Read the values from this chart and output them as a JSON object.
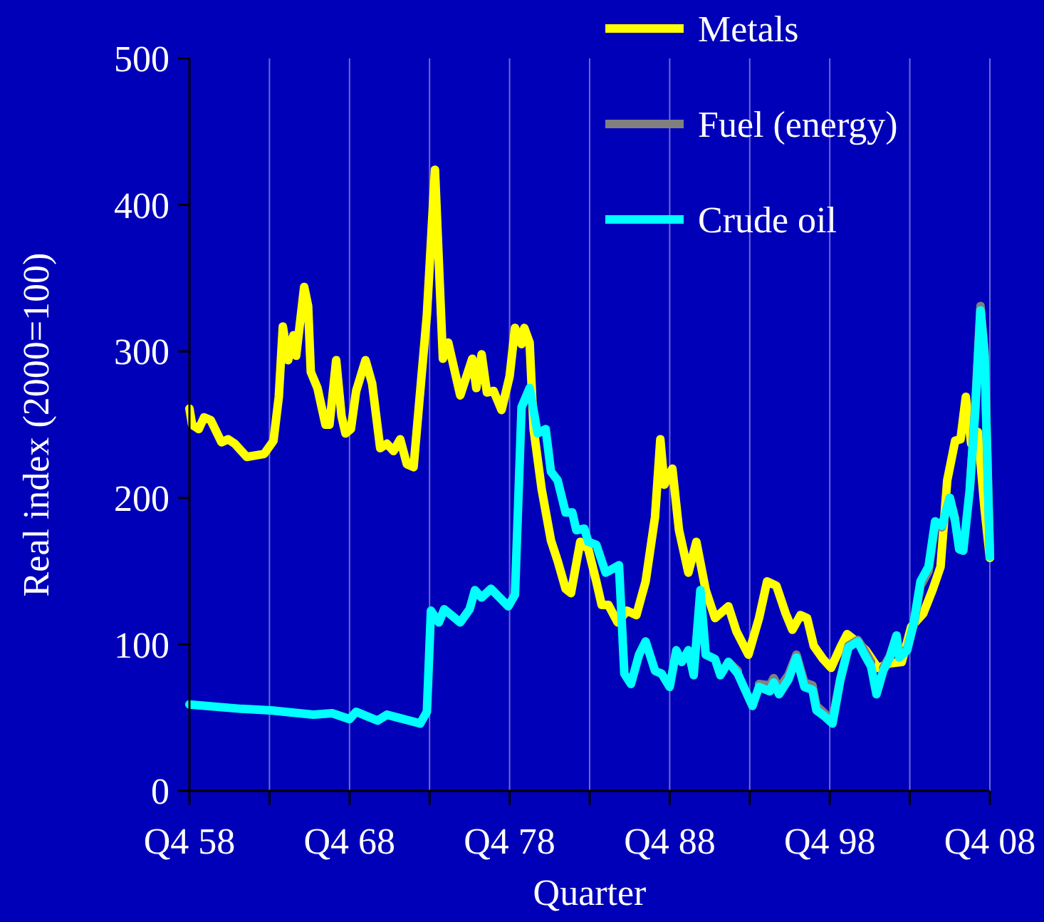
{
  "chart_data": {
    "type": "line",
    "xlabel": "Quarter",
    "ylabel": "Real index (2000=100)",
    "xlim": [
      "1958-10",
      "2008-10"
    ],
    "xticks": [
      {
        "value": "1958-10",
        "label": "Q4 58"
      },
      {
        "value": "1963-10",
        "label": null
      },
      {
        "value": "1968-10",
        "label": "Q4 68"
      },
      {
        "value": "1973-10",
        "label": null
      },
      {
        "value": "1978-10",
        "label": "Q4 78"
      },
      {
        "value": "1983-10",
        "label": null
      },
      {
        "value": "1988-10",
        "label": "Q4 88"
      },
      {
        "value": "1993-10",
        "label": null
      },
      {
        "value": "1998-10",
        "label": "Q4 98"
      },
      {
        "value": "2003-10",
        "label": null
      },
      {
        "value": "2008-10",
        "label": "Q4 08"
      }
    ],
    "ylim": [
      0,
      500
    ],
    "yticks": [
      0,
      100,
      200,
      300,
      400,
      500
    ],
    "grid": "x",
    "legend": "top right",
    "line_style": "solid",
    "marker": "none",
    "series": [
      {
        "name": "Metals",
        "color": "#ffff00",
        "x": [
          "1958-10",
          "1958-12",
          "1959-05",
          "1959-09",
          "1960-02",
          "1960-10",
          "1961-03",
          "1961-08",
          "1962-05",
          "1963-06",
          "1964-01",
          "1964-05",
          "1964-08",
          "1964-12",
          "1965-04",
          "1965-06",
          "1965-12",
          "1966-03",
          "1966-05",
          "1966-10",
          "1967-04",
          "1967-07",
          "1967-12",
          "1968-04",
          "1968-07",
          "1968-11",
          "1969-03",
          "1969-10",
          "1970-03",
          "1970-09",
          "1971-02",
          "1971-07",
          "1971-12",
          "1972-05",
          "1972-10",
          "1973-08",
          "1974-02",
          "1974-08",
          "1974-12",
          "1975-09",
          "1976-06",
          "1976-09",
          "1977-01",
          "1977-05",
          "1977-10",
          "1978-04",
          "1978-10",
          "1979-02",
          "1979-07",
          "1979-09",
          "1980-01",
          "1980-04",
          "1980-10",
          "1981-05",
          "1981-10",
          "1982-04",
          "1982-08",
          "1983-03",
          "1983-09",
          "1984-03",
          "1984-07",
          "1984-12",
          "1985-07",
          "1986-02",
          "1986-09",
          "1987-04",
          "1987-11",
          "1988-03",
          "1988-06",
          "1988-12",
          "1989-05",
          "1989-12",
          "1990-06",
          "1991-01",
          "1991-08",
          "1992-06",
          "1992-12",
          "1993-09",
          "1994-05",
          "1994-11",
          "1995-06",
          "1996-01",
          "1996-06",
          "1996-12",
          "1997-05",
          "1997-10",
          "1998-05",
          "1998-11",
          "1999-06",
          "1999-11",
          "2000-06",
          "2001-01",
          "2001-10",
          "2002-07",
          "2003-04",
          "2003-11",
          "2004-08",
          "2005-03",
          "2005-09",
          "2006-02",
          "2006-08",
          "2006-12",
          "2007-04",
          "2007-08",
          "2008-01",
          "2008-06",
          "2008-10"
        ],
        "values": [
          261,
          250,
          247,
          255,
          253,
          238,
          240,
          237,
          228,
          230,
          239,
          269,
          317,
          294,
          311,
          297,
          344,
          331,
          286,
          275,
          250,
          250,
          294,
          256,
          244,
          247,
          273,
          294,
          278,
          234,
          237,
          232,
          240,
          223,
          221,
          325,
          424,
          295,
          306,
          270,
          295,
          275,
          298,
          272,
          273,
          260,
          283,
          316,
          305,
          316,
          306,
          247,
          206,
          171,
          157,
          138,
          135,
          170,
          165,
          143,
          127,
          127,
          115,
          123,
          120,
          143,
          187,
          240,
          209,
          220,
          178,
          149,
          170,
          137,
          118,
          126,
          109,
          93,
          118,
          143,
          140,
          121,
          110,
          120,
          118,
          99,
          90,
          84,
          98,
          107,
          102,
          96,
          84,
          87,
          88,
          112,
          121,
          137,
          153,
          212,
          239,
          240,
          269,
          237,
          245,
          193,
          159
        ]
      },
      {
        "name": "Fuel (energy)",
        "color": "#808080",
        "x": [
          "1992-06",
          "1993-01",
          "1993-12",
          "1994-05",
          "1995-01",
          "1995-04",
          "1995-08",
          "1996-03",
          "1996-09",
          "1997-03",
          "1997-09",
          "1997-12",
          "1998-06",
          "1998-12",
          "1999-06",
          "1999-12",
          "2000-07",
          "2000-12",
          "2001-05",
          "2001-09",
          "2002-02",
          "2002-07",
          "2002-12",
          "2003-02",
          "2003-08",
          "2004-01",
          "2004-06",
          "2004-12",
          "2005-05",
          "2005-10",
          "2006-04",
          "2006-08",
          "2006-11",
          "2007-02",
          "2007-07",
          "2007-11",
          "2008-03",
          "2008-06",
          "2008-10"
        ],
        "values": [
          88,
          82,
          null,
          73,
          72,
          77,
          70,
          79,
          93,
          74,
          72,
          58,
          53,
          48,
          77,
          99,
          103,
          96,
          88,
          null,
          84,
          92,
          106,
          93,
          97,
          114,
          140,
          150,
          182,
          180,
          200,
          186,
          null,
          null,
          207,
          262,
          331,
          300,
          162
        ]
      },
      {
        "name": "Crude oil",
        "color": "#00ffff",
        "x": [
          "1958-10",
          "1962-01",
          "1963-11",
          "1966-07",
          "1967-09",
          "1968-10",
          "1969-03",
          "1970-07",
          "1971-02",
          "1973-03",
          "1973-08",
          "1973-11",
          "1974-05",
          "1974-09",
          "1975-09",
          "1976-04",
          "1976-08",
          "1977-01",
          "1977-08",
          "1978-09",
          "1979-02",
          "1979-07",
          "1980-01",
          "1980-07",
          "1981-01",
          "1981-05",
          "1981-10",
          "1982-04",
          "1982-09",
          "1982-12",
          "1983-06",
          "1983-09",
          "1984-03",
          "1984-10",
          "1985-08",
          "1985-12",
          "1986-05",
          "1986-11",
          "1987-04",
          "1987-11",
          "1988-04",
          "1988-10",
          "1989-03",
          "1989-07",
          "1989-12",
          "1990-04",
          "1990-09",
          "1991-01",
          "1991-08",
          "1991-12",
          "1992-06",
          "1993-01",
          "1993-12",
          "1994-05",
          "1995-01",
          "1995-04",
          "1995-08",
          "1996-03",
          "1996-09",
          "1997-03",
          "1997-09",
          "1997-12",
          "1998-06",
          "1998-12",
          "1999-06",
          "1999-12",
          "2000-07",
          "2000-12",
          "2001-05",
          "2001-09",
          "2002-02",
          "2002-07",
          "2002-12",
          "2003-02",
          "2003-08",
          "2004-01",
          "2004-06",
          "2004-12",
          "2005-05",
          "2005-10",
          "2006-04",
          "2006-08",
          "2006-11",
          "2007-02",
          "2007-07",
          "2007-11",
          "2008-03",
          "2008-06",
          "2008-10"
        ],
        "values": [
          59,
          56,
          55,
          52,
          53,
          49,
          54,
          48,
          52,
          46,
          54,
          123,
          115,
          124,
          115,
          124,
          137,
          132,
          138,
          126,
          134,
          262,
          275,
          244,
          247,
          218,
          212,
          190,
          190,
          178,
          179,
          170,
          168,
          149,
          154,
          80,
          73,
          93,
          102,
          82,
          80,
          71,
          96,
          88,
          96,
          79,
          137,
          93,
          90,
          79,
          88,
          80,
          58,
          71,
          68,
          74,
          66,
          76,
          91,
          71,
          69,
          55,
          51,
          46,
          76,
          98,
          102,
          93,
          85,
          66,
          82,
          91,
          106,
          91,
          96,
          115,
          143,
          153,
          184,
          181,
          200,
          184,
          165,
          164,
          206,
          259,
          328,
          297,
          160
        ]
      }
    ]
  }
}
